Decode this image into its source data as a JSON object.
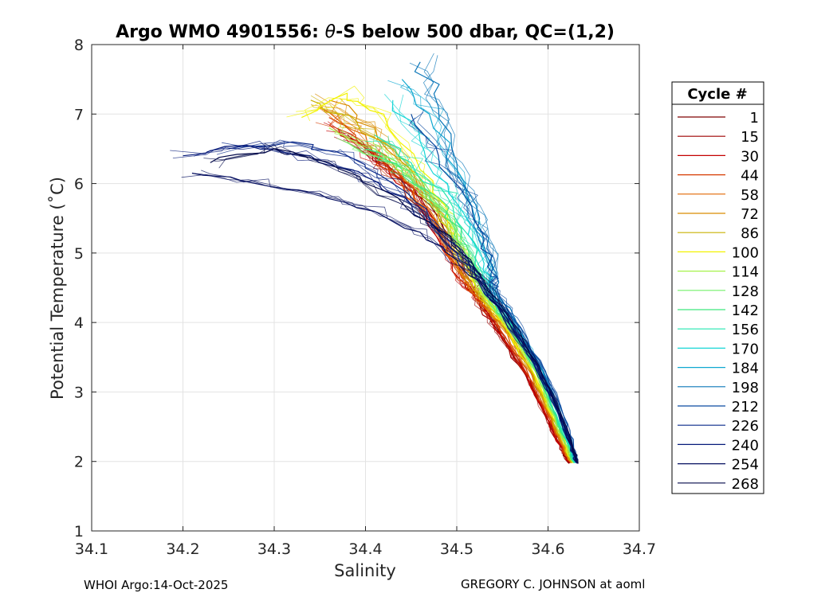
{
  "chart_data": {
    "type": "line",
    "title_prefix": "Argo WMO 4901556: ",
    "title_theta": "θ",
    "title_suffix": "-S below 500 dbar,  QC=(1,2)",
    "xlabel": "Salinity",
    "ylabel": "Potential Temperature (˚C)",
    "xlim": [
      34.1,
      34.7
    ],
    "ylim": [
      1,
      8
    ],
    "xticks": [
      "34.1",
      "34.2",
      "34.3",
      "34.4",
      "34.5",
      "34.6",
      "34.7"
    ],
    "yticks": [
      "1",
      "2",
      "3",
      "4",
      "5",
      "6",
      "7",
      "8"
    ],
    "grid": true,
    "legend_title": "Cycle #",
    "legend_position": "right",
    "legend": [
      {
        "label": "1",
        "color": "#7f0000"
      },
      {
        "label": "15",
        "color": "#9e0000"
      },
      {
        "label": "30",
        "color": "#c40000"
      },
      {
        "label": "44",
        "color": "#d63a00"
      },
      {
        "label": "58",
        "color": "#e06600"
      },
      {
        "label": "72",
        "color": "#d98c00"
      },
      {
        "label": "86",
        "color": "#c9b000"
      },
      {
        "label": "100",
        "color": "#f2f200"
      },
      {
        "label": "114",
        "color": "#a6f24a"
      },
      {
        "label": "128",
        "color": "#73f06a"
      },
      {
        "label": "142",
        "color": "#3fe67e"
      },
      {
        "label": "156",
        "color": "#22e6b0"
      },
      {
        "label": "170",
        "color": "#17d6d6"
      },
      {
        "label": "184",
        "color": "#0fa8d0"
      },
      {
        "label": "198",
        "color": "#0a76b8"
      },
      {
        "label": "212",
        "color": "#0a4aa0"
      },
      {
        "label": "226",
        "color": "#08288a"
      },
      {
        "label": "240",
        "color": "#061a7a"
      },
      {
        "label": "254",
        "color": "#050f60"
      },
      {
        "label": "268",
        "color": "#03094a"
      }
    ],
    "series": [
      {
        "name": "1",
        "color": "#7f0000",
        "points": [
          [
            34.4,
            6.5
          ],
          [
            34.43,
            6.2
          ],
          [
            34.47,
            5.7
          ],
          [
            34.5,
            5.05
          ],
          [
            34.52,
            4.55
          ],
          [
            34.53,
            4.2
          ],
          [
            34.55,
            3.8
          ],
          [
            34.58,
            3.2
          ],
          [
            34.6,
            2.6
          ],
          [
            34.615,
            2.2
          ],
          [
            34.623,
            1.97
          ]
        ]
      },
      {
        "name": "15",
        "color": "#9e0000",
        "points": [
          [
            34.38,
            6.7
          ],
          [
            34.42,
            6.3
          ],
          [
            34.46,
            5.8
          ],
          [
            34.49,
            5.1
          ],
          [
            34.51,
            4.6
          ],
          [
            34.525,
            4.25
          ],
          [
            34.55,
            3.75
          ],
          [
            34.575,
            3.25
          ],
          [
            34.597,
            2.65
          ],
          [
            34.613,
            2.25
          ],
          [
            34.622,
            1.98
          ]
        ]
      },
      {
        "name": "30",
        "color": "#c40000",
        "points": [
          [
            34.37,
            6.8
          ],
          [
            34.41,
            6.4
          ],
          [
            34.45,
            5.9
          ],
          [
            34.48,
            5.2
          ],
          [
            34.505,
            4.6
          ],
          [
            34.525,
            4.3
          ],
          [
            34.55,
            3.8
          ],
          [
            34.578,
            3.2
          ],
          [
            34.6,
            2.6
          ],
          [
            34.615,
            2.2
          ],
          [
            34.624,
            1.98
          ]
        ]
      },
      {
        "name": "44",
        "color": "#d63a00",
        "points": [
          [
            34.36,
            6.95
          ],
          [
            34.4,
            6.5
          ],
          [
            34.44,
            6.0
          ],
          [
            34.48,
            5.3
          ],
          [
            34.505,
            4.65
          ],
          [
            34.525,
            4.3
          ],
          [
            34.553,
            3.8
          ],
          [
            34.58,
            3.2
          ],
          [
            34.602,
            2.6
          ],
          [
            34.616,
            2.2
          ],
          [
            34.625,
            1.98
          ]
        ]
      },
      {
        "name": "58",
        "color": "#e06600",
        "points": [
          [
            34.35,
            7.1
          ],
          [
            34.4,
            6.7
          ],
          [
            34.44,
            6.1
          ],
          [
            34.47,
            5.5
          ],
          [
            34.5,
            4.8
          ],
          [
            34.525,
            4.35
          ],
          [
            34.555,
            3.85
          ],
          [
            34.582,
            3.25
          ],
          [
            34.603,
            2.62
          ],
          [
            34.617,
            2.2
          ],
          [
            34.625,
            1.98
          ]
        ]
      },
      {
        "name": "72",
        "color": "#d98c00",
        "points": [
          [
            34.36,
            7.2
          ],
          [
            34.41,
            6.8
          ],
          [
            34.45,
            6.2
          ],
          [
            34.48,
            5.5
          ],
          [
            34.5,
            4.85
          ],
          [
            34.527,
            4.35
          ],
          [
            34.556,
            3.85
          ],
          [
            34.583,
            3.25
          ],
          [
            34.604,
            2.62
          ],
          [
            34.618,
            2.2
          ],
          [
            34.626,
            1.98
          ]
        ]
      },
      {
        "name": "86",
        "color": "#c9b000",
        "points": [
          [
            34.34,
            7.2
          ],
          [
            34.39,
            6.9
          ],
          [
            34.44,
            6.3
          ],
          [
            34.48,
            5.6
          ],
          [
            34.505,
            4.9
          ],
          [
            34.528,
            4.35
          ],
          [
            34.557,
            3.85
          ],
          [
            34.584,
            3.25
          ],
          [
            34.605,
            2.62
          ],
          [
            34.619,
            2.2
          ],
          [
            34.626,
            1.98
          ]
        ]
      },
      {
        "name": "100",
        "color": "#f2f200",
        "points": [
          [
            34.33,
            6.95
          ],
          [
            34.38,
            7.3
          ],
          [
            34.42,
            7.0
          ],
          [
            34.46,
            6.2
          ],
          [
            34.49,
            5.5
          ],
          [
            34.51,
            4.9
          ],
          [
            34.53,
            4.35
          ],
          [
            34.558,
            3.85
          ],
          [
            34.585,
            3.25
          ],
          [
            34.606,
            2.62
          ],
          [
            34.62,
            2.2
          ],
          [
            34.627,
            1.98
          ]
        ]
      },
      {
        "name": "114",
        "color": "#a6f24a",
        "points": [
          [
            34.36,
            6.8
          ],
          [
            34.41,
            6.5
          ],
          [
            34.45,
            6.1
          ],
          [
            34.49,
            5.5
          ],
          [
            34.51,
            4.95
          ],
          [
            34.53,
            4.4
          ],
          [
            34.56,
            3.87
          ],
          [
            34.587,
            3.27
          ],
          [
            34.607,
            2.64
          ],
          [
            34.621,
            2.2
          ],
          [
            34.628,
            1.98
          ]
        ]
      },
      {
        "name": "128",
        "color": "#73f06a",
        "points": [
          [
            34.38,
            6.6
          ],
          [
            34.43,
            6.3
          ],
          [
            34.47,
            5.9
          ],
          [
            34.5,
            5.3
          ],
          [
            34.515,
            4.9
          ],
          [
            34.532,
            4.4
          ],
          [
            34.561,
            3.88
          ],
          [
            34.588,
            3.27
          ],
          [
            34.608,
            2.64
          ],
          [
            34.622,
            2.2
          ],
          [
            34.628,
            1.98
          ]
        ]
      },
      {
        "name": "142",
        "color": "#3fe67e",
        "points": [
          [
            34.4,
            6.5
          ],
          [
            34.44,
            6.2
          ],
          [
            34.48,
            5.8
          ],
          [
            34.505,
            5.2
          ],
          [
            34.52,
            4.8
          ],
          [
            34.534,
            4.42
          ],
          [
            34.562,
            3.88
          ],
          [
            34.589,
            3.28
          ],
          [
            34.609,
            2.64
          ],
          [
            34.623,
            2.2
          ],
          [
            34.629,
            1.98
          ]
        ]
      },
      {
        "name": "156",
        "color": "#22e6b0",
        "points": [
          [
            34.41,
            6.7
          ],
          [
            34.45,
            6.3
          ],
          [
            34.49,
            5.8
          ],
          [
            34.51,
            5.3
          ],
          [
            34.525,
            4.8
          ],
          [
            34.536,
            4.43
          ],
          [
            34.563,
            3.9
          ],
          [
            34.59,
            3.28
          ],
          [
            34.61,
            2.65
          ],
          [
            34.624,
            2.2
          ],
          [
            34.629,
            1.98
          ]
        ]
      },
      {
        "name": "170",
        "color": "#17d6d6",
        "points": [
          [
            34.43,
            7.2
          ],
          [
            34.46,
            6.6
          ],
          [
            34.49,
            6.0
          ],
          [
            34.515,
            5.4
          ],
          [
            34.53,
            4.85
          ],
          [
            34.538,
            4.45
          ],
          [
            34.565,
            3.9
          ],
          [
            34.592,
            3.3
          ],
          [
            34.612,
            2.66
          ],
          [
            34.625,
            2.2
          ],
          [
            34.63,
            1.98
          ]
        ]
      },
      {
        "name": "184",
        "color": "#0fa8d0",
        "points": [
          [
            34.44,
            7.5
          ],
          [
            34.47,
            7.0
          ],
          [
            34.5,
            6.2
          ],
          [
            34.52,
            5.5
          ],
          [
            34.535,
            4.9
          ],
          [
            34.54,
            4.45
          ],
          [
            34.567,
            3.92
          ],
          [
            34.594,
            3.3
          ],
          [
            34.614,
            2.66
          ],
          [
            34.626,
            2.2
          ],
          [
            34.631,
            1.98
          ]
        ]
      },
      {
        "name": "198",
        "color": "#0a76b8",
        "points": [
          [
            34.46,
            7.75
          ],
          [
            34.48,
            7.1
          ],
          [
            34.5,
            6.3
          ],
          [
            34.525,
            5.5
          ],
          [
            34.538,
            4.95
          ],
          [
            34.542,
            4.47
          ],
          [
            34.568,
            3.92
          ],
          [
            34.595,
            3.3
          ],
          [
            34.615,
            2.66
          ],
          [
            34.627,
            2.2
          ],
          [
            34.631,
            1.98
          ]
        ]
      },
      {
        "name": "212",
        "color": "#0a4aa0",
        "points": [
          [
            34.45,
            7.0
          ],
          [
            34.48,
            6.4
          ],
          [
            34.51,
            5.8
          ],
          [
            34.53,
            5.2
          ],
          [
            34.54,
            4.7
          ],
          [
            34.544,
            4.47
          ],
          [
            34.57,
            3.93
          ],
          [
            34.597,
            3.3
          ],
          [
            34.617,
            2.66
          ],
          [
            34.628,
            2.2
          ],
          [
            34.632,
            1.98
          ]
        ]
      },
      {
        "name": "226",
        "color": "#08288a",
        "points": [
          [
            34.25,
            6.5
          ],
          [
            34.32,
            6.6
          ],
          [
            34.38,
            6.4
          ],
          [
            34.43,
            6.0
          ],
          [
            34.47,
            5.5
          ],
          [
            34.5,
            5.0
          ],
          [
            34.53,
            4.55
          ],
          [
            34.56,
            4.0
          ],
          [
            34.59,
            3.35
          ],
          [
            34.612,
            2.7
          ],
          [
            34.626,
            2.22
          ],
          [
            34.632,
            1.98
          ]
        ]
      },
      {
        "name": "240",
        "color": "#061a7a",
        "points": [
          [
            34.2,
            6.4
          ],
          [
            34.27,
            6.55
          ],
          [
            34.34,
            6.4
          ],
          [
            34.4,
            6.1
          ],
          [
            34.45,
            5.7
          ],
          [
            34.49,
            5.2
          ],
          [
            34.52,
            4.7
          ],
          [
            34.55,
            4.1
          ],
          [
            34.585,
            3.4
          ],
          [
            34.61,
            2.72
          ],
          [
            34.625,
            2.22
          ],
          [
            34.631,
            1.98
          ]
        ]
      },
      {
        "name": "254",
        "color": "#050f60",
        "points": [
          [
            34.21,
            6.15
          ],
          [
            34.28,
            6.0
          ],
          [
            34.35,
            5.85
          ],
          [
            34.41,
            5.6
          ],
          [
            34.46,
            5.3
          ],
          [
            34.5,
            4.9
          ],
          [
            34.525,
            4.6
          ],
          [
            34.555,
            4.05
          ],
          [
            34.588,
            3.38
          ],
          [
            34.611,
            2.72
          ],
          [
            34.626,
            2.22
          ],
          [
            34.632,
            1.97
          ]
        ]
      },
      {
        "name": "268",
        "color": "#03094a",
        "points": [
          [
            34.23,
            6.3
          ],
          [
            34.3,
            6.5
          ],
          [
            34.36,
            6.3
          ],
          [
            34.42,
            5.9
          ],
          [
            34.47,
            5.45
          ],
          [
            34.505,
            5.0
          ],
          [
            34.53,
            4.6
          ],
          [
            34.558,
            4.05
          ],
          [
            34.59,
            3.38
          ],
          [
            34.613,
            2.72
          ],
          [
            34.627,
            2.22
          ],
          [
            34.633,
            1.97
          ]
        ]
      }
    ]
  },
  "footer": {
    "left": "WHOI Argo:14-Oct-2025",
    "right": "GREGORY C. JOHNSON at aoml"
  }
}
